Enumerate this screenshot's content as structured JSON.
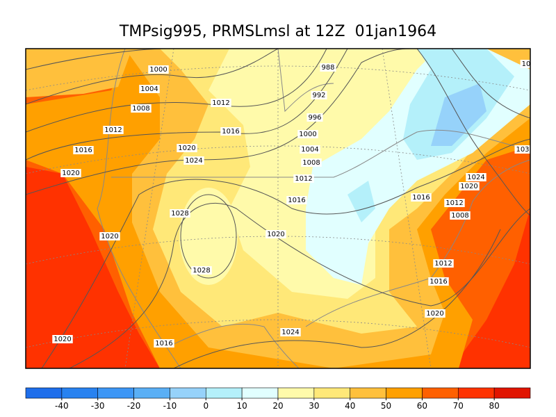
{
  "title": "TMPsig995, PRMSLmsl at 12Z  01jan1964",
  "colorbar": {
    "colors": [
      "#1e6eeb",
      "#2882f0",
      "#3c96f5",
      "#5aaff5",
      "#96d2fa",
      "#b4f0fa",
      "#e1ffff",
      "#fffaaa",
      "#ffe878",
      "#ffc03c",
      "#ffa000",
      "#ff6000",
      "#ff3200",
      "#e11400"
    ],
    "ticks": [
      -40,
      -30,
      -20,
      -10,
      0,
      10,
      20,
      30,
      40,
      50,
      60,
      70,
      80
    ]
  },
  "contour_labels": [
    "1000",
    "1004",
    "1008",
    "1012",
    "1016",
    "1020",
    "1020",
    "1020",
    "1016",
    "1012",
    "1016",
    "1020",
    "1024",
    "1028",
    "1028",
    "1020",
    "1016",
    "1012",
    "1008",
    "1004",
    "1000",
    "996",
    "992",
    "988",
    "1024",
    "1020",
    "1016",
    "1012",
    "1008",
    "1012",
    "1016",
    "1020",
    "1024",
    "103",
    "10"
  ]
}
